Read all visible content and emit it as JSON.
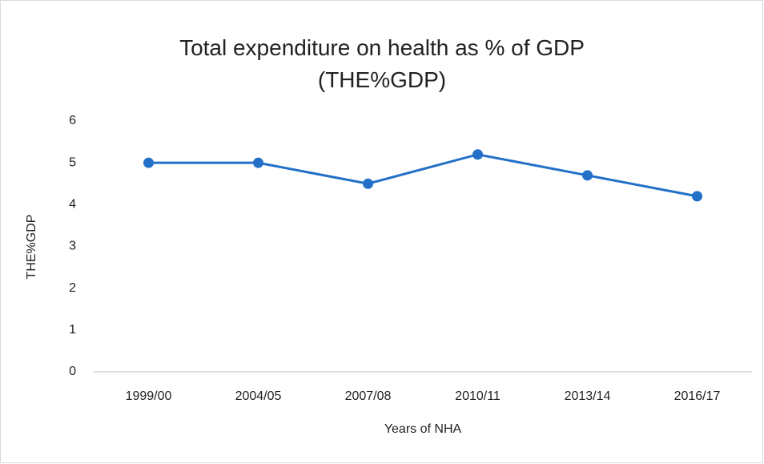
{
  "chart_data": {
    "type": "line",
    "title": "Total expenditure on health as % of GDP (THE%GDP)",
    "x_label": "Years of NHA",
    "y_label": "THE%GDP",
    "categories": [
      "1999/00",
      "2004/05",
      "2007/08",
      "2010/11",
      "2013/14",
      "2016/17"
    ],
    "series": [
      {
        "name": "THE%GDP",
        "color": "#2270c8",
        "values": [
          5,
          5,
          4.5,
          5.2,
          4.7,
          4.2
        ]
      }
    ],
    "ylim": [
      0,
      6
    ],
    "yticks": [
      0,
      1,
      2,
      3,
      4,
      5,
      6
    ],
    "grid": false,
    "legend": false
  }
}
